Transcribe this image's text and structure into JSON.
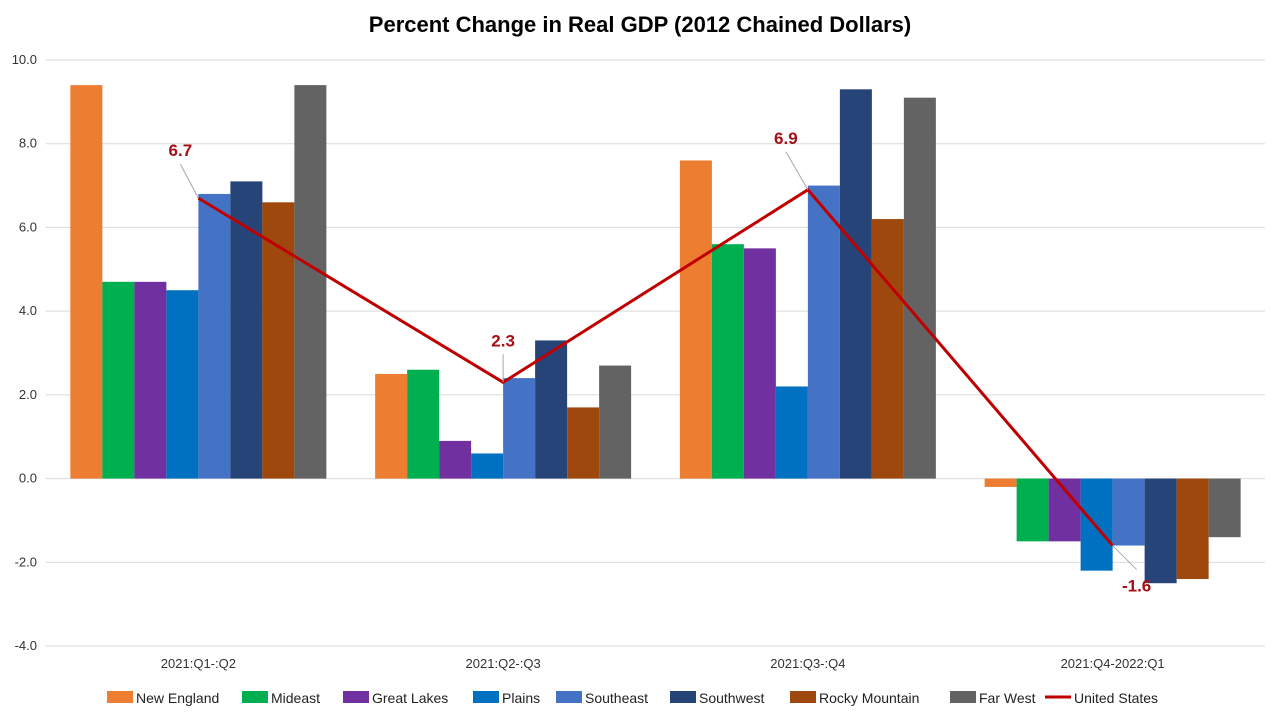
{
  "chart_data": {
    "type": "bar",
    "title": "Percent Change in Real GDP (2012 Chained Dollars)",
    "xlabel": "",
    "ylabel": "",
    "ylim": [
      -4.0,
      10.0
    ],
    "yticks": [
      "-4.0",
      "-2.0",
      "0.0",
      "2.0",
      "4.0",
      "6.0",
      "8.0",
      "10.0"
    ],
    "grid": true,
    "legend_position": "bottom",
    "categories": [
      "2021:Q1-:Q2",
      "2021:Q2-:Q3",
      "2021:Q3-:Q4",
      "2021:Q4-2022:Q1"
    ],
    "series": [
      {
        "name": "New England",
        "color": "#ed7d31",
        "values": [
          9.4,
          2.5,
          7.6,
          -0.2
        ]
      },
      {
        "name": "Mideast",
        "color": "#00b050",
        "values": [
          4.7,
          2.6,
          5.6,
          -1.5
        ]
      },
      {
        "name": "Great Lakes",
        "color": "#7030a0",
        "values": [
          4.7,
          0.9,
          5.5,
          -1.5
        ]
      },
      {
        "name": "Plains",
        "color": "#0070c0",
        "values": [
          4.5,
          0.6,
          2.2,
          -2.2
        ]
      },
      {
        "name": "Southeast",
        "color": "#4472c4",
        "values": [
          6.8,
          2.4,
          7.0,
          -1.6
        ]
      },
      {
        "name": "Southwest",
        "color": "#264478",
        "values": [
          7.1,
          3.3,
          9.3,
          -2.5
        ]
      },
      {
        "name": "Rocky Mountain",
        "color": "#9e480e",
        "values": [
          6.6,
          1.7,
          6.2,
          -2.4
        ]
      },
      {
        "name": "Far West",
        "color": "#636363",
        "values": [
          9.4,
          2.7,
          9.1,
          -1.4
        ]
      }
    ],
    "line_series": {
      "name": "United States",
      "color": "#c00000",
      "values": [
        6.7,
        2.3,
        6.9,
        -1.6
      ],
      "labels": [
        "6.7",
        "2.3",
        "6.9",
        "-1.6"
      ]
    }
  }
}
